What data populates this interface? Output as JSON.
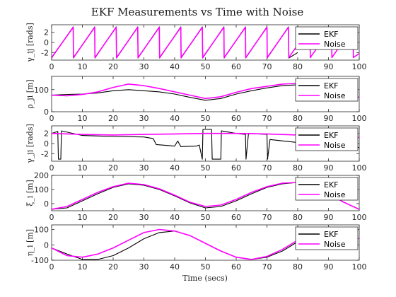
{
  "figure": {
    "title": "EKF Measurements vs Time with Noise",
    "xlabel": "Time (secs)"
  },
  "colors": {
    "ekf": "#000000",
    "noise": "#ff00ff",
    "axis": "#262626"
  },
  "chart_data": [
    {
      "type": "line",
      "ylabel": "γ_ij [rads]",
      "xlim": [
        0,
        100
      ],
      "ylim": [
        -3.5,
        3.5
      ],
      "xticks": [
        "0",
        "10",
        "20",
        "30",
        "40",
        "50",
        "60",
        "70",
        "80",
        "90",
        "100"
      ],
      "yticks": [
        "-2",
        "0",
        "2"
      ],
      "legend": "top-right",
      "series": [
        {
          "name": "EKF",
          "x": [
            0,
            7,
            7.1,
            14,
            14.1,
            21,
            21.1,
            28,
            28.1,
            35,
            35.1,
            42,
            42.1,
            49,
            49.1,
            56,
            56.1,
            63,
            63.1,
            70,
            70.1,
            77,
            77.1,
            80
          ],
          "y": [
            -3.1,
            3.1,
            -3.1,
            3.1,
            -3.1,
            3.1,
            -3.1,
            3.1,
            -3.1,
            3.1,
            -3.1,
            3.1,
            -3.1,
            3.1,
            -3.1,
            3.1,
            -3.1,
            3.1,
            -3.1,
            3.1,
            -3.1,
            3.1,
            -3.1,
            -2.0
          ]
        },
        {
          "name": "Noise",
          "x": [
            0,
            7,
            7.1,
            14,
            14.1,
            21,
            21.1,
            28,
            28.1,
            35,
            35.1,
            42,
            42.1,
            49,
            49.1,
            56,
            56.1,
            63,
            63.1,
            70,
            70.1,
            77,
            77.1,
            84,
            84.1,
            91,
            91.1,
            98,
            98.1,
            100
          ],
          "y": [
            -3.0,
            3.0,
            -3.0,
            3.0,
            -3.0,
            3.0,
            -3.0,
            3.0,
            -3.0,
            3.0,
            -3.0,
            3.0,
            -3.0,
            3.0,
            -3.0,
            3.0,
            -3.0,
            3.0,
            -3.0,
            3.0,
            -3.0,
            3.0,
            -3.0,
            3.0,
            -3.0,
            3.0,
            -3.0,
            3.0,
            -3.0,
            -2.2
          ]
        }
      ]
    },
    {
      "type": "line",
      "ylabel": "ρ_ji [m]",
      "xlim": [
        0,
        100
      ],
      "ylim": [
        0,
        160
      ],
      "xticks": [
        "0",
        "10",
        "20",
        "30",
        "40",
        "50",
        "60",
        "70",
        "80",
        "90",
        "100"
      ],
      "yticks": [
        "0",
        "100"
      ],
      "legend": "top-right",
      "series": [
        {
          "name": "EKF",
          "x": [
            0,
            5,
            10,
            15,
            20,
            25,
            30,
            35,
            40,
            45,
            50,
            55,
            60,
            65,
            70,
            75,
            80
          ],
          "y": [
            75,
            78,
            80,
            85,
            95,
            100,
            95,
            90,
            80,
            65,
            52,
            60,
            80,
            95,
            108,
            118,
            122
          ]
        },
        {
          "name": "Noise",
          "x": [
            0,
            5,
            10,
            15,
            20,
            25,
            30,
            35,
            40,
            45,
            50,
            55,
            60,
            65,
            70,
            75,
            80,
            85,
            90,
            95,
            100
          ],
          "y": [
            75,
            72,
            78,
            90,
            110,
            125,
            118,
            105,
            90,
            75,
            60,
            68,
            88,
            105,
            115,
            125,
            128,
            120,
            105,
            85,
            65
          ]
        }
      ]
    },
    {
      "type": "line",
      "ylabel": "γ_ji [rads]",
      "xlim": [
        0,
        100
      ],
      "ylim": [
        -3.5,
        3.5
      ],
      "xticks": [
        "0",
        "10",
        "20",
        "30",
        "40",
        "50",
        "60",
        "70",
        "80",
        "90",
        "100"
      ],
      "yticks": [
        "-2",
        "0",
        "2"
      ],
      "legend": "top-right",
      "series": [
        {
          "name": "EKF",
          "x": [
            0,
            2,
            2.2,
            3,
            3.2,
            10,
            20,
            30,
            33,
            34,
            40,
            41,
            42,
            47,
            48,
            49,
            49.2,
            52,
            52.2,
            55,
            55.2,
            60,
            63,
            63.2,
            64,
            70,
            70.2,
            71,
            80,
            90,
            100
          ],
          "y": [
            2.0,
            2.4,
            -3.1,
            -3.1,
            2.5,
            1.6,
            1.4,
            1.3,
            1.0,
            -0.2,
            -0.5,
            0.5,
            -0.6,
            -0.5,
            -0.3,
            -3.1,
            2.8,
            2.8,
            -3.1,
            -3.1,
            2.5,
            2.0,
            1.8,
            -3.1,
            2.0,
            1.8,
            -3.1,
            0.8,
            0.2,
            -0.6,
            -0.8
          ]
        },
        {
          "name": "Noise",
          "x": [
            0,
            10,
            20,
            30,
            40,
            50,
            60,
            70,
            80,
            90,
            100
          ],
          "y": [
            2.0,
            1.8,
            1.7,
            1.8,
            1.9,
            2.0,
            2.0,
            1.9,
            1.7,
            1.4,
            1.2
          ]
        }
      ]
    },
    {
      "type": "line",
      "ylabel": "ξ_i [m]",
      "xlim": [
        0,
        100
      ],
      "ylim": [
        -50,
        200
      ],
      "xticks": [
        "0",
        "10",
        "20",
        "30",
        "40",
        "50",
        "60",
        "70",
        "80",
        "90",
        "100"
      ],
      "yticks": [
        "0",
        "100",
        "200"
      ],
      "legend": "top-right",
      "series": [
        {
          "name": "EKF",
          "x": [
            0,
            5,
            10,
            15,
            20,
            25,
            30,
            35,
            40,
            45,
            50,
            55,
            60,
            65,
            70,
            75,
            80
          ],
          "y": [
            -40,
            -30,
            20,
            70,
            115,
            140,
            130,
            100,
            55,
            5,
            -30,
            -20,
            20,
            70,
            115,
            140,
            150
          ]
        },
        {
          "name": "Noise",
          "x": [
            0,
            5,
            10,
            15,
            20,
            25,
            30,
            35,
            40,
            45,
            50,
            55,
            60,
            65,
            70,
            75,
            80,
            85,
            90,
            95,
            100
          ],
          "y": [
            -40,
            -20,
            30,
            80,
            120,
            145,
            135,
            105,
            60,
            10,
            -20,
            -10,
            30,
            80,
            120,
            145,
            150,
            120,
            70,
            10,
            -40
          ]
        }
      ]
    },
    {
      "type": "line",
      "ylabel": "η_i [m]",
      "xlim": [
        0,
        100
      ],
      "ylim": [
        -100,
        130
      ],
      "xticks": [
        "0",
        "10",
        "20",
        "30",
        "40",
        "50",
        "60",
        "70",
        "80",
        "90",
        "100"
      ],
      "yticks": [
        "-100",
        "0",
        "100"
      ],
      "legend": "top-right",
      "series": [
        {
          "name": "EKF",
          "x": [
            0,
            5,
            10,
            15,
            20,
            25,
            30,
            35,
            40,
            45,
            50,
            55,
            60,
            65,
            70,
            75,
            80
          ],
          "y": [
            -20,
            -60,
            -95,
            -95,
            -70,
            -20,
            40,
            80,
            90,
            60,
            10,
            -40,
            -80,
            -95,
            -80,
            -40,
            20
          ]
        },
        {
          "name": "Noise",
          "x": [
            0,
            5,
            10,
            15,
            20,
            25,
            30,
            35,
            40,
            45,
            50,
            55,
            60,
            65,
            70,
            75,
            80,
            85,
            90,
            95,
            100
          ],
          "y": [
            -20,
            -70,
            -80,
            -60,
            -20,
            30,
            80,
            100,
            90,
            60,
            10,
            -40,
            -80,
            -95,
            -75,
            -30,
            30,
            90,
            110,
            80,
            40
          ]
        }
      ]
    }
  ]
}
